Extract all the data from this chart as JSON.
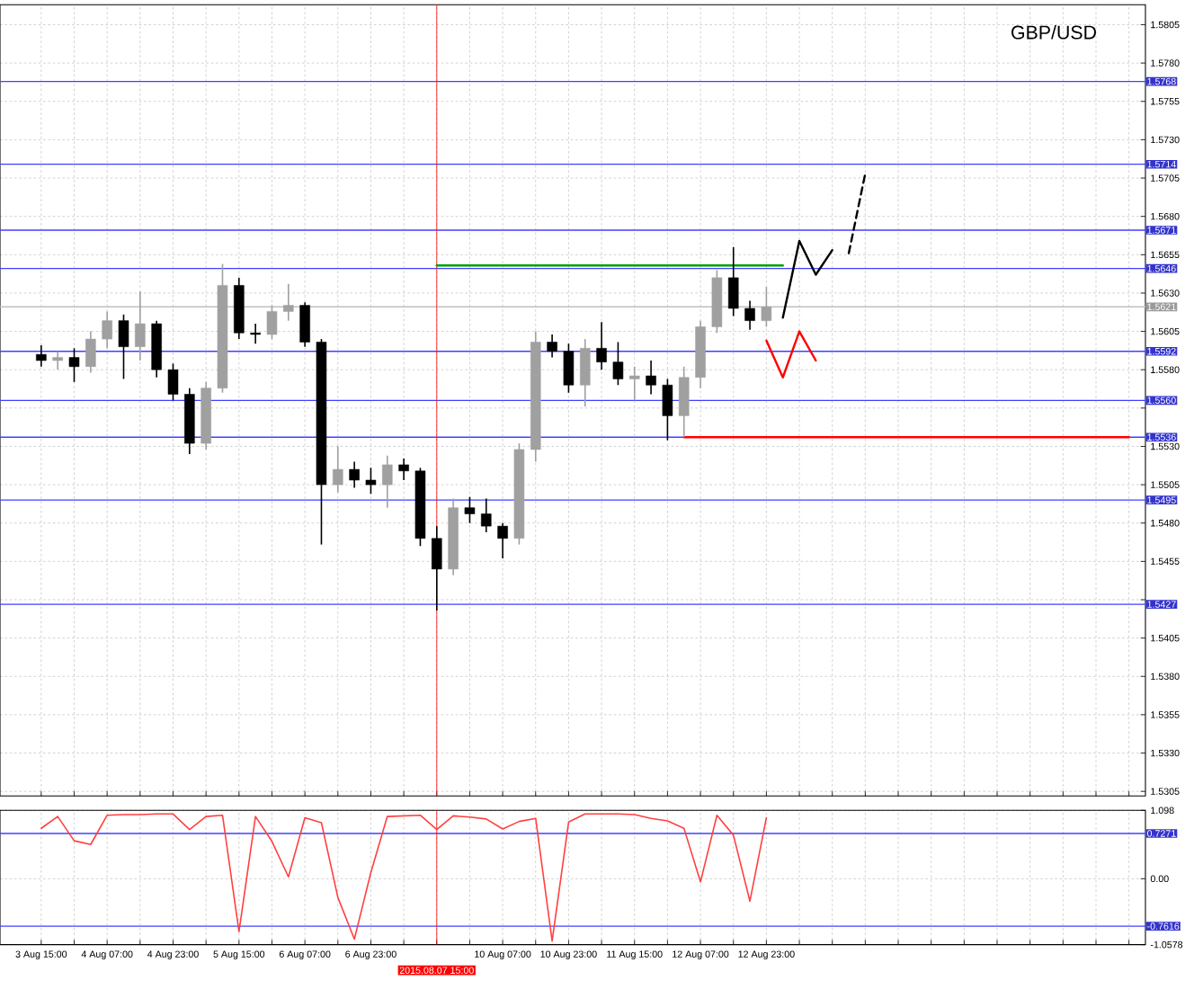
{
  "chart_data": [
    {
      "type": "candlestick",
      "title": "GBP/USD",
      "categories": [
        "3 Aug 15:00",
        null,
        null,
        null,
        "4 Aug 07:00",
        null,
        null,
        null,
        "4 Aug 23:00",
        null,
        null,
        null,
        "5 Aug 15:00",
        null,
        null,
        null,
        "6 Aug 07:00",
        null,
        null,
        null,
        "6 Aug 23:00",
        null,
        null,
        null,
        "2015.08.07 15:00",
        null,
        null,
        null,
        "10 Aug 07:00",
        null,
        null,
        null,
        "10 Aug 23:00",
        null,
        null,
        null,
        "11 Aug 15:00",
        null,
        null,
        null,
        "12 Aug 07:00",
        null,
        null,
        null,
        "12 Aug 23:00",
        null,
        null,
        null,
        null,
        null,
        null,
        null,
        null,
        null,
        null,
        null,
        null,
        null,
        null,
        null,
        null,
        null,
        null,
        null,
        null,
        null,
        null
      ],
      "ohlc": [
        [
          1.559,
          1.5596,
          1.5582,
          1.5586
        ],
        [
          1.5586,
          1.5592,
          1.558,
          1.5588
        ],
        [
          1.5588,
          1.5594,
          1.5572,
          1.5582
        ],
        [
          1.5582,
          1.5605,
          1.5578,
          1.56
        ],
        [
          1.56,
          1.5618,
          1.5594,
          1.5612
        ],
        [
          1.5612,
          1.5616,
          1.5574,
          1.5595
        ],
        [
          1.5595,
          1.5631,
          1.5586,
          1.561
        ],
        [
          1.561,
          1.5612,
          1.5575,
          1.558
        ],
        [
          1.558,
          1.5584,
          1.556,
          1.5564
        ],
        [
          1.5564,
          1.5568,
          1.5525,
          1.5532
        ],
        [
          1.5532,
          1.5572,
          1.5528,
          1.5568
        ],
        [
          1.5568,
          1.5649,
          1.5565,
          1.5635
        ],
        [
          1.5635,
          1.564,
          1.56,
          1.5604
        ],
        [
          1.5604,
          1.561,
          1.5597,
          1.5603
        ],
        [
          1.5603,
          1.5622,
          1.56,
          1.5618
        ],
        [
          1.5618,
          1.5636,
          1.5612,
          1.5622
        ],
        [
          1.5622,
          1.5624,
          1.5595,
          1.5598
        ],
        [
          1.5598,
          1.56,
          1.5466,
          1.5505
        ],
        [
          1.5505,
          1.553,
          1.55,
          1.5515
        ],
        [
          1.5515,
          1.552,
          1.5503,
          1.5508
        ],
        [
          1.5508,
          1.5516,
          1.5499,
          1.5505
        ],
        [
          1.5505,
          1.5524,
          1.549,
          1.5518
        ],
        [
          1.5518,
          1.5522,
          1.5508,
          1.5514
        ],
        [
          1.5514,
          1.5516,
          1.5465,
          1.547
        ],
        [
          1.547,
          1.5478,
          1.5423,
          1.545
        ],
        [
          1.545,
          1.5496,
          1.5446,
          1.549
        ],
        [
          1.549,
          1.5497,
          1.548,
          1.5486
        ],
        [
          1.5486,
          1.5496,
          1.5474,
          1.5478
        ],
        [
          1.5478,
          1.548,
          1.5457,
          1.547
        ],
        [
          1.547,
          1.5532,
          1.5466,
          1.5528
        ],
        [
          1.5528,
          1.5605,
          1.552,
          1.5598
        ],
        [
          1.5598,
          1.5603,
          1.5588,
          1.5592
        ],
        [
          1.5592,
          1.5597,
          1.5565,
          1.557
        ],
        [
          1.557,
          1.56,
          1.5556,
          1.5594
        ],
        [
          1.5594,
          1.5611,
          1.558,
          1.5585
        ],
        [
          1.5585,
          1.5598,
          1.557,
          1.5574
        ],
        [
          1.5574,
          1.5582,
          1.556,
          1.5576
        ],
        [
          1.5576,
          1.5586,
          1.5564,
          1.557
        ],
        [
          1.557,
          1.5574,
          1.5534,
          1.555
        ],
        [
          1.555,
          1.5582,
          1.5536,
          1.5575
        ],
        [
          1.5575,
          1.5612,
          1.5568,
          1.5608
        ],
        [
          1.5608,
          1.5645,
          1.5604,
          1.564
        ],
        [
          1.564,
          1.566,
          1.5615,
          1.562
        ],
        [
          1.562,
          1.5625,
          1.5606,
          1.5612
        ],
        [
          1.5612,
          1.5634,
          1.5608,
          1.5621
        ],
        null,
        null,
        null,
        null,
        null,
        null,
        null,
        null,
        null,
        null,
        null,
        null,
        null,
        null,
        null,
        null,
        null,
        null,
        null,
        null,
        null,
        null
      ],
      "colors": [
        "#000000",
        "#a0a0a0",
        "#000000",
        "#a0a0a0",
        "#a0a0a0",
        "#000000",
        "#a0a0a0",
        "#000000",
        "#000000",
        "#000000",
        "#a0a0a0",
        "#a0a0a0",
        "#000000",
        "#000000",
        "#a0a0a0",
        "#a0a0a0",
        "#000000",
        "#000000",
        "#a0a0a0",
        "#000000",
        "#000000",
        "#a0a0a0",
        "#000000",
        "#000000",
        "#000000",
        "#a0a0a0",
        "#000000",
        "#000000",
        "#000000",
        "#a0a0a0",
        "#a0a0a0",
        "#000000",
        "#000000",
        "#a0a0a0",
        "#000000",
        "#000000",
        "#a0a0a0",
        "#000000",
        "#000000",
        "#a0a0a0",
        "#a0a0a0",
        "#a0a0a0",
        "#000000",
        "#000000",
        "#a0a0a0",
        null,
        null,
        null,
        null,
        null,
        null,
        null,
        null,
        null,
        null,
        null,
        null,
        null,
        null,
        null,
        null,
        null,
        null,
        null,
        null,
        null,
        null
      ],
      "series": [
        {
          "type": "line",
          "color": "#00a000",
          "values": [
            null,
            null,
            null,
            null,
            null,
            null,
            null,
            null,
            null,
            null,
            null,
            null,
            null,
            null,
            null,
            null,
            null,
            null,
            null,
            null,
            null,
            null,
            null,
            null,
            1.5648,
            1.5648,
            1.5648,
            1.5648,
            1.5648,
            1.5648,
            1.5648,
            1.5648,
            1.5648,
            1.5648,
            1.5648,
            1.5648,
            1.5648,
            1.5648,
            1.5648,
            1.5648,
            1.5648,
            1.5648,
            1.5648,
            1.5648,
            1.5648,
            1.5648,
            null,
            null,
            null,
            null,
            null,
            null,
            null,
            null,
            null,
            null,
            null,
            null,
            null,
            null,
            null,
            null,
            null,
            null,
            null,
            null,
            null
          ]
        },
        {
          "type": "line",
          "color": "#ff0000",
          "values": [
            null,
            null,
            null,
            null,
            null,
            null,
            null,
            null,
            null,
            null,
            null,
            null,
            null,
            null,
            null,
            null,
            null,
            null,
            null,
            null,
            null,
            null,
            null,
            null,
            null,
            null,
            null,
            null,
            null,
            null,
            null,
            null,
            null,
            null,
            null,
            null,
            null,
            null,
            null,
            1.5536,
            1.5536,
            1.5536,
            1.5536,
            1.5536,
            1.5536,
            1.5536,
            1.5536,
            1.5536,
            1.5536,
            1.5536,
            1.5536,
            1.5536,
            1.5536,
            1.5536,
            1.5536,
            1.5536,
            1.5536,
            1.5536,
            1.5536,
            1.5536,
            1.5536,
            1.5536,
            1.5536,
            1.5536,
            1.5536,
            1.5536,
            1.5536
          ]
        },
        {
          "type": "line",
          "color": "#000000",
          "values": [
            null,
            null,
            null,
            null,
            null,
            null,
            null,
            null,
            null,
            null,
            null,
            null,
            null,
            null,
            null,
            null,
            null,
            null,
            null,
            null,
            null,
            null,
            null,
            null,
            null,
            null,
            null,
            null,
            null,
            null,
            null,
            null,
            null,
            null,
            null,
            null,
            null,
            null,
            null,
            null,
            null,
            null,
            null,
            null,
            null,
            1.5614,
            1.5664,
            1.5642,
            1.5658,
            null,
            null,
            null,
            null,
            null,
            null,
            null,
            null,
            null,
            null,
            null,
            null,
            null,
            null,
            null,
            null,
            null,
            null
          ]
        },
        {
          "type": "line",
          "color": "#000000",
          "line_style": "dashed",
          "values": [
            null,
            null,
            null,
            null,
            null,
            null,
            null,
            null,
            null,
            null,
            null,
            null,
            null,
            null,
            null,
            null,
            null,
            null,
            null,
            null,
            null,
            null,
            null,
            null,
            null,
            null,
            null,
            null,
            null,
            null,
            null,
            null,
            null,
            null,
            null,
            null,
            null,
            null,
            null,
            null,
            null,
            null,
            null,
            null,
            null,
            null,
            null,
            null,
            null,
            1.5656,
            1.5708,
            null,
            null,
            null,
            null,
            null,
            null,
            null,
            null,
            null,
            null,
            null,
            null,
            null,
            null,
            null,
            null
          ]
        },
        {
          "type": "line",
          "color": "#ff0000",
          "values": [
            null,
            null,
            null,
            null,
            null,
            null,
            null,
            null,
            null,
            null,
            null,
            null,
            null,
            null,
            null,
            null,
            null,
            null,
            null,
            null,
            null,
            null,
            null,
            null,
            null,
            null,
            null,
            null,
            null,
            null,
            null,
            null,
            null,
            null,
            null,
            null,
            null,
            null,
            null,
            null,
            null,
            null,
            null,
            null,
            1.5599,
            1.5575,
            1.5605,
            1.5586,
            null,
            null,
            null,
            null,
            null,
            null,
            null,
            null,
            null,
            null,
            null,
            null,
            null,
            null,
            null,
            null,
            null,
            null,
            null
          ]
        }
      ],
      "ylim": [
        1.5302,
        1.5818
      ],
      "yticks": [
        1.5305,
        {
          "value": 1.533,
          "label": "1.5330"
        },
        1.5355,
        {
          "value": 1.538,
          "label": "1.5380"
        },
        1.5405,
        {
          "value": 1.543,
          "label": null
        },
        1.5455,
        {
          "value": 1.548,
          "label": "1.5480"
        },
        1.5505,
        {
          "value": 1.553,
          "label": "1.5530"
        },
        {
          "value": 1.5555,
          "label": null
        },
        {
          "value": 1.558,
          "label": "1.5580"
        },
        1.5605,
        {
          "value": 1.563,
          "label": "1.5630"
        },
        1.5655,
        {
          "value": 1.568,
          "label": "1.5680"
        },
        1.5705,
        {
          "value": 1.573,
          "label": "1.5730"
        },
        1.5755,
        {
          "value": 1.578,
          "label": "1.5780"
        },
        1.5805
      ],
      "ref_lines": [
        {
          "axis": "y",
          "value": 1.5768,
          "label": "1.5768",
          "color": "#4040ff"
        },
        {
          "axis": "y",
          "value": 1.5714,
          "label": "1.5714",
          "color": "#4040ff"
        },
        {
          "axis": "y",
          "value": 1.5671,
          "label": "1.5671",
          "color": "#4040ff"
        },
        {
          "axis": "y",
          "value": 1.5646,
          "label": "1.5646",
          "color": "#4040ff"
        },
        {
          "axis": "y",
          "value": 1.5621,
          "label": "1.5621",
          "color": "#c0c0c0"
        },
        {
          "axis": "y",
          "value": 1.5592,
          "label": "1.5592",
          "color": "#4040ff"
        },
        {
          "axis": "y",
          "value": 1.556,
          "label": "1.5560",
          "color": "#4040ff"
        },
        {
          "axis": "y",
          "value": 1.5536,
          "label": "1.5536",
          "color": "#4040ff"
        },
        {
          "axis": "y",
          "value": 1.5495,
          "label": "1.5495",
          "color": "#4040ff"
        },
        {
          "axis": "y",
          "value": 1.5427,
          "label": "1.5427",
          "color": "#4040ff"
        },
        {
          "axis": "x",
          "value": "2015.08.07 15:00",
          "color": "#ff0000"
        }
      ],
      "grid": true,
      "tick_labels": "y"
    },
    {
      "type": "line",
      "color": "#ff4040",
      "categories": [
        "3 Aug 15:00",
        null,
        null,
        null,
        "4 Aug 07:00",
        null,
        null,
        null,
        "4 Aug 23:00",
        null,
        null,
        null,
        "5 Aug 15:00",
        null,
        null,
        null,
        "6 Aug 07:00",
        null,
        null,
        null,
        "6 Aug 23:00",
        null,
        null,
        null,
        "2015.08.07 15:00",
        null,
        null,
        null,
        "10 Aug 07:00",
        null,
        null,
        null,
        "10 Aug 23:00",
        null,
        null,
        null,
        "11 Aug 15:00",
        null,
        null,
        null,
        "12 Aug 07:00",
        null,
        null,
        null,
        "12 Aug 23:00",
        null,
        null,
        null,
        null,
        null,
        null,
        null,
        null,
        null,
        null,
        null,
        null,
        null,
        null,
        null,
        null,
        null,
        null,
        null,
        null,
        null,
        null
      ],
      "values": [
        0.81,
        1.0,
        0.61,
        0.55,
        1.02,
        1.03,
        1.03,
        1.04,
        1.04,
        0.79,
        1.0,
        1.02,
        -0.85,
        1.0,
        0.6,
        0.03,
        0.98,
        0.9,
        -0.3,
        -0.97,
        0.1,
        1.0,
        1.01,
        1.02,
        0.79,
        1.01,
        0.99,
        0.96,
        0.8,
        0.92,
        0.97,
        -1.0,
        0.91,
        1.04,
        1.04,
        1.04,
        1.03,
        0.97,
        0.93,
        0.81,
        -0.05,
        1.02,
        0.7,
        -0.36,
        0.98,
        null,
        null,
        null,
        null,
        null,
        null,
        null,
        null,
        null,
        null,
        null,
        null,
        null,
        null,
        null,
        null,
        null,
        null,
        null,
        null,
        null,
        null
      ],
      "ylim": [
        -1.0578,
        1.098
      ],
      "yticks": [
        {
          "value": -1.0578,
          "label": "-1.0578"
        },
        {
          "value": 0,
          "label": "0.00"
        },
        1.098
      ],
      "ref_lines": [
        {
          "axis": "y",
          "value": 0.7271,
          "label": "0.7271",
          "color": "#4040ff"
        },
        {
          "axis": "y",
          "value": -0.7616,
          "label": "-0.7616",
          "color": "#4040ff"
        },
        {
          "axis": "x",
          "value": "2015.08.07 15:00",
          "color": "#ff0000"
        }
      ],
      "grid": true
    }
  ]
}
